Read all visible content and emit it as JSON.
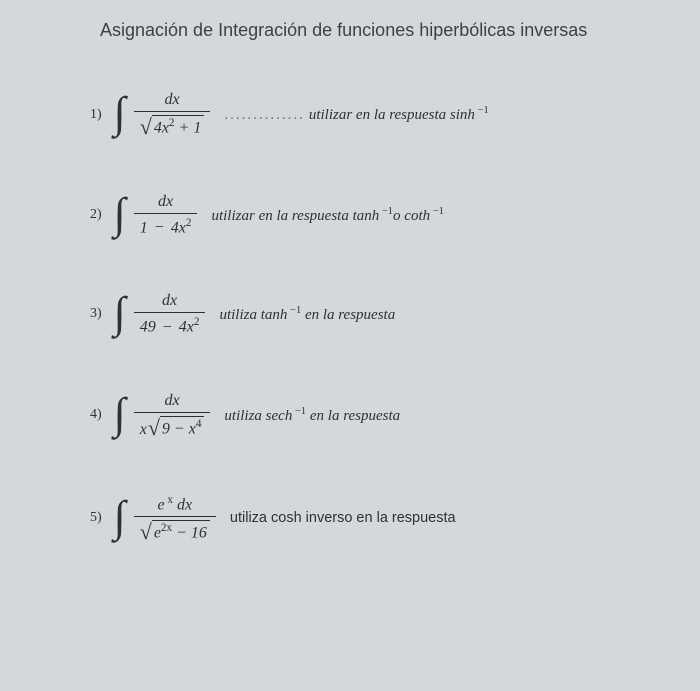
{
  "title": "Asignación de Integración de funciones hiperbólicas inversas",
  "problems": [
    {
      "num": "1)",
      "numerator": "dx",
      "denominator_type": "sqrt",
      "radicand": "4x<sup>2</sup> + 1",
      "dots": "..............",
      "hint": "utilizar en la respuesta sinh<sup>&nbsp;&minus;1</sup>",
      "hint_sans": false
    },
    {
      "num": "2)",
      "numerator": "dx",
      "denominator_type": "plain",
      "denominator": "1 <span class=\"op\">&minus;</span> 4x<sup>2</sup>",
      "hint": "utilizar en la respuesta tanh<sup>&nbsp;&minus;1</sup>o coth<sup>&nbsp;&minus;1</sup>",
      "hint_sans": false
    },
    {
      "num": "3)",
      "numerator": "dx",
      "denominator_type": "plain",
      "denominator": "49 <span class=\"op\">&minus;</span> 4x<sup>2</sup>",
      "hint": "utiliza tanh<sup>&nbsp;&minus;1</sup> en la respuesta",
      "hint_sans": false
    },
    {
      "num": "4)",
      "numerator": "dx",
      "denominator_type": "xsqrt",
      "prefix": "x",
      "radicand": "9 &minus; x<sup>4</sup>",
      "hint": "utiliza sech<sup>&nbsp;&minus;1</sup> en la respuesta",
      "hint_sans": false
    },
    {
      "num": "5)",
      "numerator": "e<sup>&nbsp;x</sup> dx",
      "denominator_type": "sqrt",
      "radicand": "e<sup>2x</sup> &minus; 16",
      "hint": "utiliza cosh inverso en la respuesta",
      "hint_sans": true
    }
  ]
}
